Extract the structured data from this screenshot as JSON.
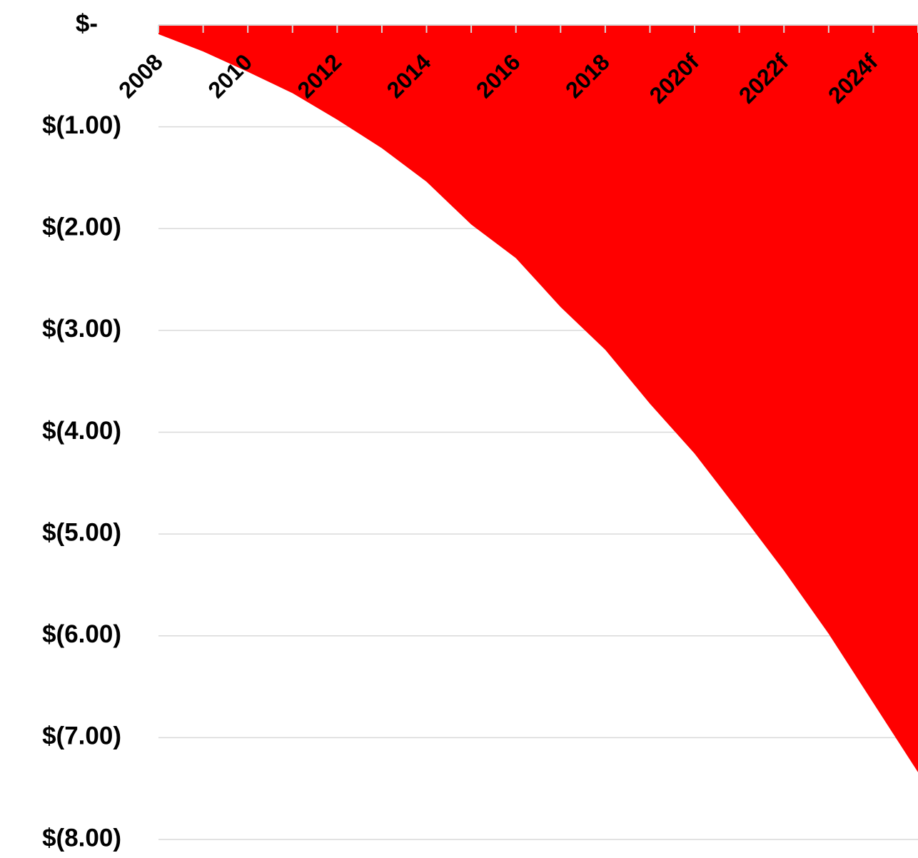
{
  "chart_data": {
    "type": "area",
    "color": "#ff0000",
    "grid": true,
    "categories": [
      "2008",
      null,
      "2010",
      null,
      "2012",
      null,
      "2014",
      null,
      "2016",
      null,
      "2018",
      null,
      "2020f",
      null,
      "2022f",
      null,
      "2024f",
      null
    ],
    "values": [
      -0.09,
      -0.26,
      -0.46,
      -0.67,
      -0.93,
      -1.21,
      -1.54,
      -1.96,
      -2.29,
      -2.77,
      -3.19,
      -3.72,
      -4.21,
      -4.78,
      -5.36,
      -5.98,
      -6.66,
      -7.34
    ],
    "ylim": [
      -8,
      0
    ],
    "yticks": [
      {
        "value": 0,
        "label": "$-"
      },
      {
        "value": -1,
        "label": "$(1.00)"
      },
      {
        "value": -2,
        "label": "$(2.00)"
      },
      {
        "value": -3,
        "label": "$(3.00)"
      },
      {
        "value": -4,
        "label": "$(4.00)"
      },
      {
        "value": -5,
        "label": "$(5.00)"
      },
      {
        "value": -6,
        "label": "$(6.00)"
      },
      {
        "value": -7,
        "label": "$(7.00)"
      },
      {
        "value": -8,
        "label": "$(8.00)"
      }
    ]
  }
}
